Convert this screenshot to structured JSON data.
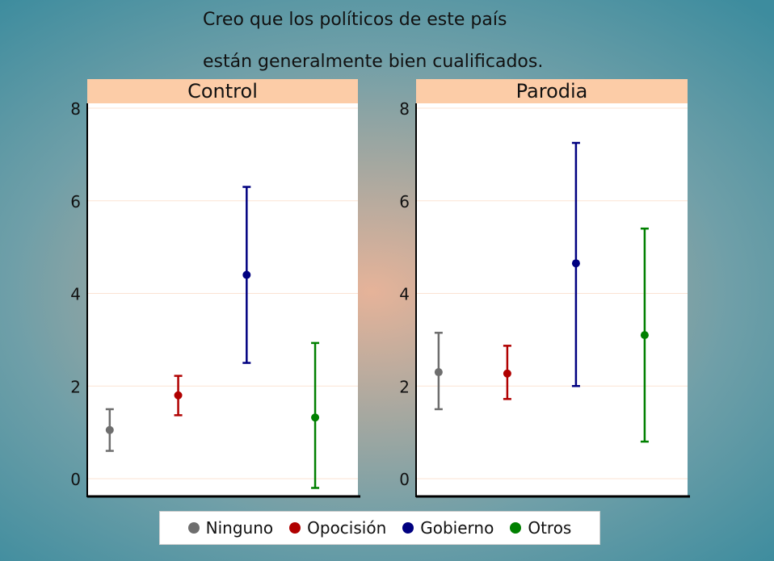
{
  "title_lines": [
    "Creo que los políticos de este país",
    "están generalmente bien cualificados."
  ],
  "colors": {
    "Ninguno": "#6e6e6e",
    "Opocisión": "#b00000",
    "Gobierno": "#000080",
    "Otros": "#008000",
    "panel_header": "#fccca7",
    "grid": "#fbe3d3"
  },
  "legend": [
    {
      "label": "Ninguno"
    },
    {
      "label": "Opocisión"
    },
    {
      "label": "Gobierno"
    },
    {
      "label": "Otros"
    }
  ],
  "chart_data": {
    "type": "scatter",
    "subtype": "point-range",
    "title": "Creo que los políticos de este país están generalmente bien cualificados.",
    "ylim": [
      0,
      8
    ],
    "yticks": [
      0,
      2,
      4,
      6,
      8
    ],
    "grid": true,
    "legend_position": "bottom",
    "categories": [
      "Ninguno",
      "Opocisión",
      "Gobierno",
      "Otros"
    ],
    "panels": [
      {
        "name": "Control",
        "series": [
          {
            "name": "Ninguno",
            "value": 1.05,
            "lower": 0.6,
            "upper": 1.5
          },
          {
            "name": "Opocisión",
            "value": 1.8,
            "lower": 1.37,
            "upper": 2.22
          },
          {
            "name": "Gobierno",
            "value": 4.4,
            "lower": 2.5,
            "upper": 6.3
          },
          {
            "name": "Otros",
            "value": 1.32,
            "lower": -0.2,
            "upper": 2.93
          }
        ]
      },
      {
        "name": "Parodia",
        "series": [
          {
            "name": "Ninguno",
            "value": 2.3,
            "lower": 1.5,
            "upper": 3.15
          },
          {
            "name": "Opocisión",
            "value": 2.27,
            "lower": 1.72,
            "upper": 2.87
          },
          {
            "name": "Gobierno",
            "value": 4.65,
            "lower": 2.0,
            "upper": 7.25
          },
          {
            "name": "Otros",
            "value": 3.1,
            "lower": 0.8,
            "upper": 5.4
          }
        ]
      }
    ]
  }
}
